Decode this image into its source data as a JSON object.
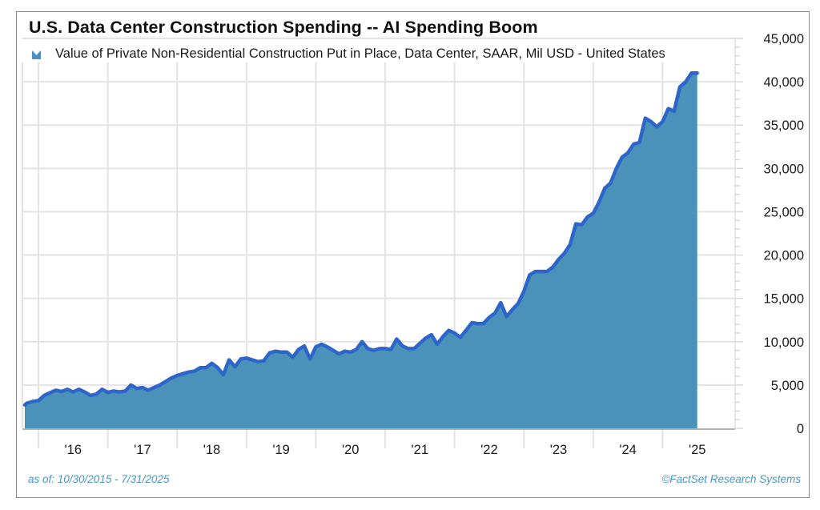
{
  "title": "U.S. Data Center Construction Spending -- AI Spending Boom",
  "legend": {
    "label": "Value of Private Non-Residential Construction Put in Place, Data Center, SAAR, Mil USD - United States",
    "icon": "area-series-swatch-icon",
    "color": "#4a90c4"
  },
  "footer": {
    "as_of": "as of: 10/30/2015 - 7/31/2025",
    "source": "©FactSet Research Systems"
  },
  "colors": {
    "line": "#2d66c8",
    "fill": "#4a92ba",
    "grid": "#e3e3e3",
    "footer_text": "#4a95c5"
  },
  "chart_data": {
    "type": "area",
    "title": "U.S. Data Center Construction Spending -- AI Spending Boom",
    "series": [
      {
        "name": "Value of Private Non-Residential Construction Put in Place, Data Center, SAAR, Mil USD - United States",
        "start": "2015-10",
        "end": "2025-07",
        "frequency": "monthly",
        "values": [
          2700,
          2900,
          3100,
          3200,
          3800,
          4100,
          4400,
          4250,
          4500,
          4200,
          4500,
          4200,
          3800,
          3950,
          4500,
          4150,
          4300,
          4200,
          4300,
          5000,
          4600,
          4700,
          4400,
          4700,
          5000,
          5400,
          5800,
          6100,
          6300,
          6500,
          6600,
          7000,
          7000,
          7500,
          7000,
          6200,
          7900,
          7100,
          8000,
          8100,
          7900,
          7700,
          7800,
          8700,
          8900,
          8800,
          8800,
          8200,
          9100,
          9500,
          8000,
          9400,
          9700,
          9400,
          9000,
          8600,
          8900,
          8800,
          9100,
          10000,
          9200,
          9000,
          9200,
          9200,
          9100,
          10300,
          9500,
          9200,
          9200,
          9800,
          10400,
          10800,
          9700,
          10600,
          11300,
          11000,
          10500,
          11300,
          12200,
          12100,
          12100,
          12800,
          13300,
          14500,
          12900,
          13700,
          14400,
          15800,
          17700,
          18100,
          18100,
          18100,
          18600,
          19500,
          20200,
          21200,
          23600,
          23500,
          24400,
          24800,
          26100,
          27700,
          28300,
          30000,
          31300,
          31800,
          32800,
          33000,
          35800,
          35400,
          34800,
          35400,
          36900,
          36600,
          39400,
          40000,
          41000,
          41000
        ]
      }
    ],
    "x_tick_labels": [
      "'16",
      "'17",
      "'18",
      "'19",
      "'20",
      "'21",
      "'22",
      "'23",
      "'24",
      "'25"
    ],
    "y_tick_labels": [
      "0",
      "5,000",
      "10,000",
      "15,000",
      "20,000",
      "25,000",
      "30,000",
      "35,000",
      "40,000",
      "45,000"
    ],
    "ylim": [
      0,
      45000
    ],
    "y_axis_position": "right",
    "xlabel": "",
    "ylabel": "",
    "grid": true,
    "legend_position": "top-left"
  }
}
